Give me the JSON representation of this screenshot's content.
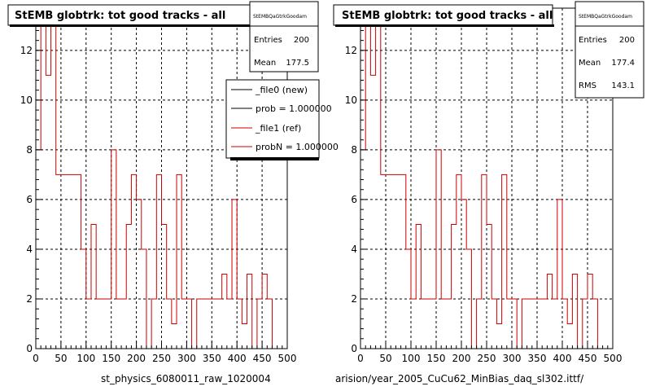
{
  "footer_faint": "",
  "chart_data": [
    {
      "type": "histogram",
      "title": "StEMB globtrk: tot good tracks - all",
      "xlabel": "st_physics_6080011_raw_1020004",
      "xlim": [
        0,
        500
      ],
      "ylim": [
        0,
        13.7
      ],
      "xticks": [
        "0",
        "50",
        "100",
        "150",
        "200",
        "250",
        "300",
        "350",
        "400",
        "450",
        "500"
      ],
      "yticks": [
        "0",
        "2",
        "4",
        "6",
        "8",
        "10",
        "12"
      ],
      "grid": true,
      "stats_box": {
        "name": "StEMBQaGtrkGoodam",
        "rows": [
          {
            "label": "Entries",
            "value": "200"
          },
          {
            "label": "Mean",
            "value": "177.5"
          }
        ]
      },
      "legend": [
        {
          "label": "_file0 (new)",
          "color": "#000000"
        },
        {
          "label": "prob = 1.000000",
          "color": "#000000"
        },
        {
          "label": "_file1 (ref)",
          "color": "#cc0000"
        },
        {
          "label": "probN = 1.000000",
          "color": "#cc0000"
        }
      ],
      "bin_width": 10,
      "series": [
        {
          "color": "#cc0000",
          "values": [
            8,
            13,
            11,
            13,
            7,
            7,
            7,
            7,
            7,
            4,
            2,
            5,
            2,
            2,
            2,
            8,
            2,
            2,
            5,
            7,
            6,
            4,
            0,
            2,
            7,
            5,
            2,
            1,
            7,
            2,
            2,
            0,
            2,
            2,
            2,
            2,
            2,
            3,
            2,
            6,
            2,
            1,
            3,
            0,
            2,
            3,
            2
          ]
        }
      ]
    },
    {
      "type": "histogram",
      "title": "StEMB globtrk: tot good tracks - all",
      "xlabel": "arision/year_2005_CuCu62_MinBias_daq_sl302.ittf/",
      "xlim": [
        0,
        500
      ],
      "ylim": [
        0,
        13.7
      ],
      "xticks": [
        "0",
        "50",
        "100",
        "150",
        "200",
        "250",
        "300",
        "350",
        "400",
        "450",
        "500"
      ],
      "yticks": [
        "0",
        "2",
        "4",
        "6",
        "8",
        "10",
        "12"
      ],
      "grid": true,
      "stats_box": {
        "name": "StEMBQaGtrkGoodam",
        "rows": [
          {
            "label": "Entries",
            "value": "200"
          },
          {
            "label": "Mean",
            "value": "177.4"
          },
          {
            "label": "RMS",
            "value": "143.1"
          }
        ]
      },
      "bin_width": 10,
      "series": [
        {
          "color": "#cc0000",
          "values": [
            8,
            13,
            11,
            13,
            7,
            7,
            7,
            7,
            7,
            4,
            2,
            5,
            2,
            2,
            2,
            8,
            2,
            2,
            5,
            7,
            6,
            4,
            0,
            2,
            7,
            5,
            2,
            1,
            7,
            2,
            2,
            0,
            2,
            2,
            2,
            2,
            2,
            3,
            2,
            6,
            2,
            1,
            3,
            0,
            2,
            3,
            2
          ]
        }
      ]
    }
  ]
}
